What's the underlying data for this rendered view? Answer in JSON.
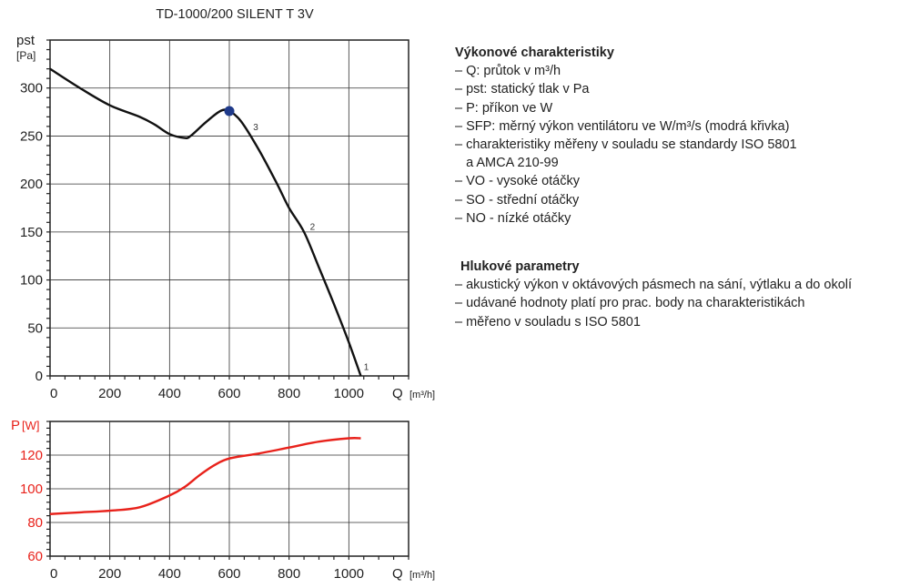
{
  "chart_data": [
    {
      "type": "line",
      "title": "TD-1000/200 SILENT T 3V",
      "ylabel": "pst",
      "yunit": "[Pa]",
      "xlabel": "Q",
      "xunit": "[m³/h]",
      "xlim": [
        0,
        1200
      ],
      "ylim": [
        0,
        350
      ],
      "xticks": [
        0,
        200,
        400,
        600,
        800,
        1000
      ],
      "yticks": [
        0,
        50,
        100,
        150,
        200,
        250,
        300
      ],
      "grid": true,
      "line_color": "#111111",
      "series": [
        {
          "x": [
            0,
            100,
            200,
            300,
            350,
            400,
            450,
            470,
            520,
            570,
            600,
            640,
            700,
            760,
            800,
            850,
            900,
            950,
            1000,
            1040
          ],
          "y": [
            320,
            300,
            282,
            270,
            262,
            252,
            248,
            250,
            264,
            276,
            276,
            265,
            235,
            200,
            175,
            150,
            113,
            75,
            35,
            0
          ]
        }
      ],
      "marker": {
        "x": 600,
        "y": 276,
        "color": "#1f3a8a"
      },
      "annotations": [
        {
          "text": "3",
          "x": 680,
          "y": 256
        },
        {
          "text": "2",
          "x": 870,
          "y": 152
        },
        {
          "text": "1",
          "x": 1050,
          "y": 6
        }
      ]
    },
    {
      "type": "line",
      "ylabel": "P",
      "yunit": "[W]",
      "xlabel": "Q",
      "xunit": "[m³/h]",
      "xlim": [
        0,
        1200
      ],
      "ylim": [
        60,
        140
      ],
      "xticks": [
        0,
        200,
        400,
        600,
        800,
        1000
      ],
      "yticks": [
        60,
        80,
        100,
        120
      ],
      "grid": true,
      "line_color": "#e8221b",
      "series": [
        {
          "x": [
            0,
            100,
            200,
            300,
            400,
            450,
            500,
            550,
            600,
            700,
            800,
            900,
            1000,
            1040
          ],
          "y": [
            85,
            86,
            87,
            89,
            96,
            101,
            108,
            114,
            118,
            121,
            124.5,
            128,
            130,
            130
          ]
        }
      ]
    }
  ],
  "info": {
    "performance_title": "Výkonové charakteristiky",
    "performance_items": [
      "– Q: průtok v m³/h",
      "– pst: statický tlak v Pa",
      "– P: příkon ve W",
      "– SFP: měrný výkon ventilátoru ve W/m³/s (modrá křivka)",
      "– charakteristiky měřeny v souladu se standardy ISO 5801",
      "   a AMCA 210-99",
      "– VO - vysoké otáčky",
      "– SO - střední otáčky",
      "– NO - nízké otáčky"
    ],
    "noise_title": "Hlukové parametry",
    "noise_items": [
      "– akustický výkon v oktávových pásmech na sání, výtlaku a do okolí",
      "– udávané hodnoty platí pro prac. body na charakteristikách",
      "– měřeno v souladu s ISO 5801"
    ]
  }
}
